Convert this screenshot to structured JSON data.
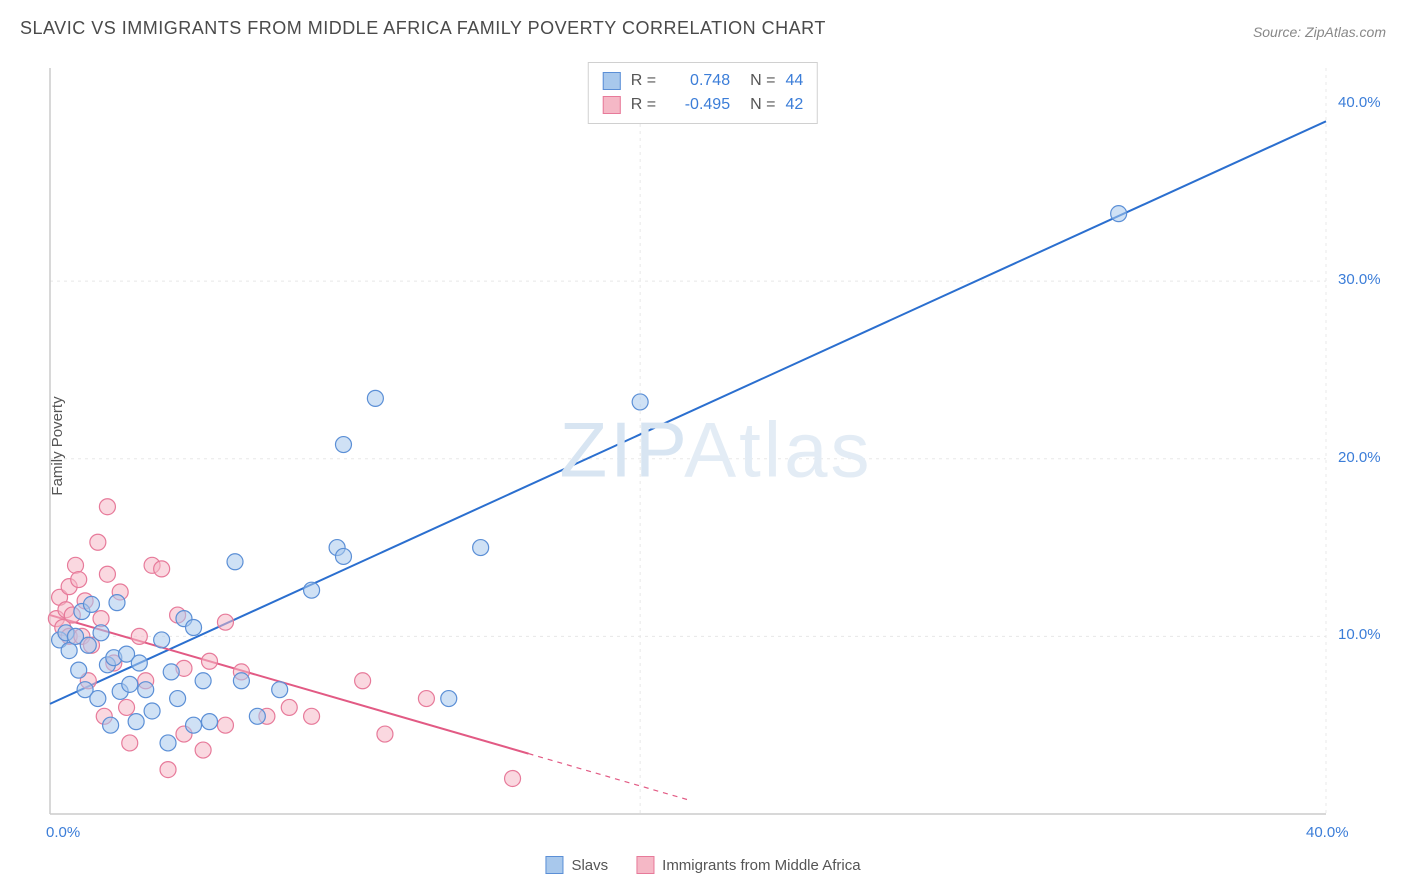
{
  "title": "SLAVIC VS IMMIGRANTS FROM MIDDLE AFRICA FAMILY POVERTY CORRELATION CHART",
  "source": "Source: ZipAtlas.com",
  "ylabel": "Family Poverty",
  "watermark_a": "ZIP",
  "watermark_b": "Atlas",
  "chart": {
    "type": "scatter",
    "xlim": [
      0,
      40
    ],
    "ylim": [
      0,
      42
    ],
    "x_ticks": [
      {
        "v": 0,
        "label": "0.0%"
      },
      {
        "v": 40,
        "label": "40.0%"
      }
    ],
    "y_ticks": [
      {
        "v": 10,
        "label": "10.0%"
      },
      {
        "v": 20,
        "label": "20.0%"
      },
      {
        "v": 30,
        "label": "30.0%"
      },
      {
        "v": 40,
        "label": "40.0%"
      }
    ],
    "grid_y": [
      10,
      20,
      30
    ],
    "grid_color": "#e8e8e8",
    "axis_color": "#cccccc",
    "background_color": "#ffffff",
    "marker_radius": 8,
    "marker_stroke_width": 1.2,
    "line_width": 2,
    "dash_line_width": 1.2,
    "series": [
      {
        "name": "Slavs",
        "fill": "#a8c8ec",
        "fill_opacity": 0.55,
        "stroke": "#5b8fd6",
        "line_color": "#2b6fcf",
        "R": "0.748",
        "N": "44",
        "trend": {
          "x1": 0,
          "y1": 6.2,
          "x2": 40,
          "y2": 39.0
        },
        "trend_dash_start_x": null,
        "points": [
          [
            0.3,
            9.8
          ],
          [
            0.5,
            10.2
          ],
          [
            0.6,
            9.2
          ],
          [
            0.8,
            10.0
          ],
          [
            0.9,
            8.1
          ],
          [
            1.0,
            11.4
          ],
          [
            1.1,
            7.0
          ],
          [
            1.2,
            9.5
          ],
          [
            1.3,
            11.8
          ],
          [
            1.5,
            6.5
          ],
          [
            1.6,
            10.2
          ],
          [
            1.8,
            8.4
          ],
          [
            1.9,
            5.0
          ],
          [
            2.0,
            8.8
          ],
          [
            2.1,
            11.9
          ],
          [
            2.2,
            6.9
          ],
          [
            2.4,
            9.0
          ],
          [
            2.5,
            7.3
          ],
          [
            2.7,
            5.2
          ],
          [
            2.8,
            8.5
          ],
          [
            3.0,
            7.0
          ],
          [
            3.2,
            5.8
          ],
          [
            3.5,
            9.8
          ],
          [
            3.7,
            4.0
          ],
          [
            3.8,
            8.0
          ],
          [
            4.0,
            6.5
          ],
          [
            4.2,
            11.0
          ],
          [
            4.5,
            5.0
          ],
          [
            4.8,
            7.5
          ],
          [
            5.0,
            5.2
          ],
          [
            5.8,
            14.2
          ],
          [
            6.0,
            7.5
          ],
          [
            6.5,
            5.5
          ],
          [
            7.2,
            7.0
          ],
          [
            8.2,
            12.6
          ],
          [
            9.0,
            15.0
          ],
          [
            9.2,
            14.5
          ],
          [
            9.2,
            20.8
          ],
          [
            10.2,
            23.4
          ],
          [
            12.5,
            6.5
          ],
          [
            13.5,
            15.0
          ],
          [
            18.5,
            23.2
          ],
          [
            33.5,
            33.8
          ],
          [
            4.5,
            10.5
          ]
        ]
      },
      {
        "name": "Immigrants from Middle Africa",
        "fill": "#f5b8c6",
        "fill_opacity": 0.55,
        "stroke": "#e77a9a",
        "line_color": "#e25a84",
        "R": "-0.495",
        "N": "42",
        "trend": {
          "x1": 0,
          "y1": 11.2,
          "x2": 20,
          "y2": 0.8
        },
        "trend_dash_start_x": 15,
        "points": [
          [
            0.2,
            11.0
          ],
          [
            0.3,
            12.2
          ],
          [
            0.4,
            10.5
          ],
          [
            0.5,
            11.5
          ],
          [
            0.6,
            12.8
          ],
          [
            0.6,
            10.0
          ],
          [
            0.7,
            11.2
          ],
          [
            0.8,
            14.0
          ],
          [
            0.9,
            13.2
          ],
          [
            1.0,
            10.0
          ],
          [
            1.1,
            12.0
          ],
          [
            1.2,
            7.5
          ],
          [
            1.3,
            9.5
          ],
          [
            1.5,
            15.3
          ],
          [
            1.6,
            11.0
          ],
          [
            1.7,
            5.5
          ],
          [
            1.8,
            13.5
          ],
          [
            1.8,
            17.3
          ],
          [
            2.0,
            8.5
          ],
          [
            2.2,
            12.5
          ],
          [
            2.4,
            6.0
          ],
          [
            2.5,
            4.0
          ],
          [
            2.8,
            10.0
          ],
          [
            3.0,
            7.5
          ],
          [
            3.2,
            14.0
          ],
          [
            3.5,
            13.8
          ],
          [
            3.7,
            2.5
          ],
          [
            4.0,
            11.2
          ],
          [
            4.2,
            4.5
          ],
          [
            4.2,
            8.2
          ],
          [
            4.8,
            3.6
          ],
          [
            5.0,
            8.6
          ],
          [
            5.5,
            5.0
          ],
          [
            6.0,
            8.0
          ],
          [
            6.8,
            5.5
          ],
          [
            7.5,
            6.0
          ],
          [
            8.2,
            5.5
          ],
          [
            9.8,
            7.5
          ],
          [
            10.5,
            4.5
          ],
          [
            11.8,
            6.5
          ],
          [
            14.5,
            2.0
          ],
          [
            5.5,
            10.8
          ]
        ]
      }
    ]
  },
  "corr_legend": {
    "r_label": "R =",
    "n_label": "N ="
  },
  "bottom_legend_labels": {
    "s1": "Slavs",
    "s2": "Immigrants from Middle Africa"
  }
}
